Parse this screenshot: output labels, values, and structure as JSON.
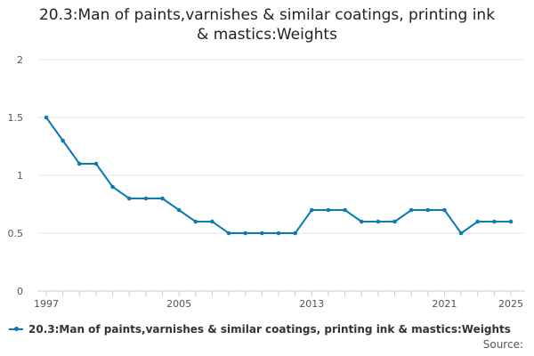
{
  "chart_data": {
    "type": "line",
    "title": "20.3:Man of paints,varnishes & similar coatings, printing ink & mastics:Weights",
    "title_lines": [
      "20.3:Man of paints,varnishes & similar coatings, printing ink",
      "& mastics:Weights"
    ],
    "xlabel": "",
    "ylabel": "",
    "x": [
      1997,
      1998,
      1999,
      2000,
      2001,
      2002,
      2003,
      2004,
      2005,
      2006,
      2007,
      2008,
      2009,
      2010,
      2011,
      2012,
      2013,
      2014,
      2015,
      2016,
      2017,
      2018,
      2019,
      2020,
      2021,
      2022,
      2023,
      2024,
      2025
    ],
    "series": [
      {
        "name": "20.3:Man of paints,varnishes & similar coatings, printing ink & mastics:Weights",
        "values": [
          1.5,
          1.3,
          1.1,
          1.1,
          0.9,
          0.8,
          0.8,
          0.8,
          0.7,
          0.6,
          0.6,
          0.5,
          0.5,
          0.5,
          0.5,
          0.5,
          0.7,
          0.7,
          0.7,
          0.6,
          0.6,
          0.6,
          0.7,
          0.7,
          0.7,
          0.5,
          0.6,
          0.6,
          0.6
        ]
      }
    ],
    "xticks": [
      1997,
      2005,
      2013,
      2021,
      2025
    ],
    "yticks": [
      0,
      0.5,
      1,
      1.5,
      2
    ],
    "ytick_labels": [
      "0",
      "0.5",
      "1",
      "1.5",
      "2"
    ],
    "xlim": [
      1997,
      2025
    ],
    "ylim": [
      0,
      2
    ],
    "grid": "horizontal",
    "legend_position": "bottom-left",
    "color": "#0a7bb5"
  },
  "footer": {
    "source_label": "Source:"
  }
}
